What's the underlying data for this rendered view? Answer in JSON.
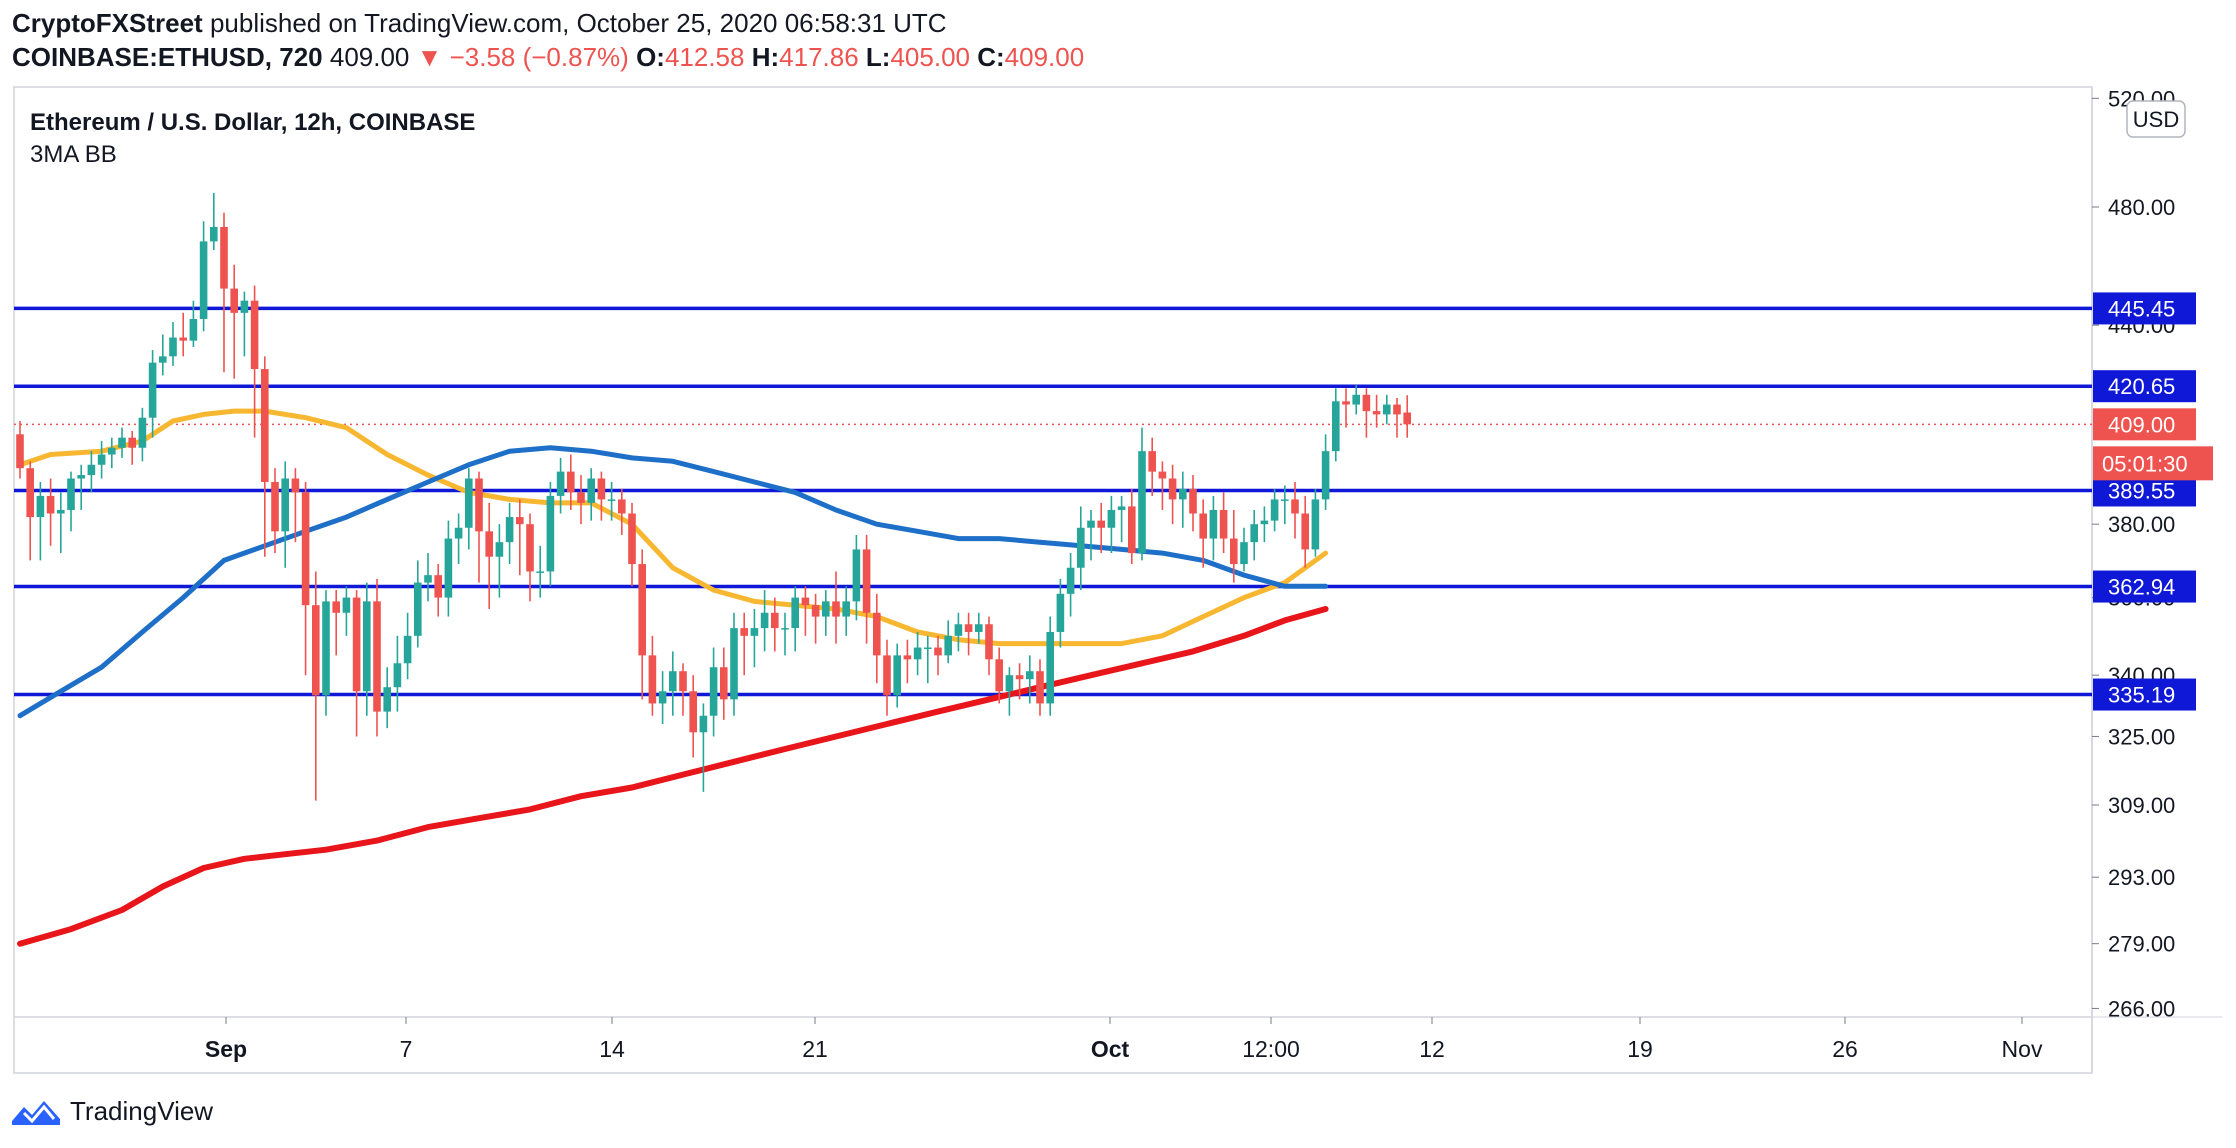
{
  "header": {
    "publisher": "CryptoFXStreet",
    "published_text": "published on TradingView.com, October 25, 2020 06:58:31 UTC",
    "symbol": "COINBASE:ETHUSD, 720",
    "last": "409.00",
    "change": "▼ −3.58 (−0.87%)",
    "o_label": "O:",
    "o_value": "412.58",
    "h_label": "H:",
    "h_value": "417.86",
    "l_label": "L:",
    "l_value": "405.00",
    "c_label": "C:",
    "c_value": "409.00"
  },
  "pane": {
    "title": "Ethereum / U.S. Dollar, 12h, COINBASE",
    "indicator": "3MA BB"
  },
  "currency_button": "USD",
  "countdown": "05:01:30",
  "footer": {
    "brand": "TradingView",
    "logo_icon": "tradingview-logo-icon"
  },
  "colors": {
    "up": "#26a69a",
    "down": "#ef5350",
    "level": "#0e18d6",
    "ma_fast": "#f7b731",
    "ma_mid": "#1e6fc8",
    "ma_slow": "#e8151b"
  },
  "chart_data": {
    "type": "candlestick",
    "interval": "12h",
    "y_axis": {
      "ticks": [
        "520.00",
        "480.00",
        "440.00",
        "380.00",
        "360.00",
        "340.00",
        "325.00",
        "309.00",
        "293.00",
        "279.00",
        "266.00"
      ],
      "scale": "log",
      "range": [
        263,
        525
      ]
    },
    "x_axis": {
      "ticks": [
        "Sep",
        "7",
        "14",
        "21",
        "Oct",
        "12:00",
        "12",
        "19",
        "26",
        "Nov"
      ]
    },
    "levels": [
      {
        "label": "445.45",
        "value": 445.45
      },
      {
        "label": "420.65",
        "value": 420.65
      },
      {
        "label": "389.55",
        "value": 389.55
      },
      {
        "label": "362.94",
        "value": 362.94
      },
      {
        "label": "335.19",
        "value": 335.19
      }
    ],
    "last_price": {
      "label": "409.00",
      "value": 409.0
    },
    "candles": [
      [
        406,
        396,
        410,
        393
      ],
      [
        396,
        382,
        398,
        370
      ],
      [
        382,
        388,
        392,
        370
      ],
      [
        388,
        383,
        393,
        374
      ],
      [
        383,
        384,
        389,
        372
      ],
      [
        384,
        393,
        395,
        378
      ],
      [
        393,
        394,
        397,
        384
      ],
      [
        394,
        397,
        401,
        389
      ],
      [
        397,
        400,
        404,
        393
      ],
      [
        400,
        402,
        405,
        396
      ],
      [
        402,
        405,
        408,
        399
      ],
      [
        405,
        402,
        407,
        397
      ],
      [
        402,
        411,
        414,
        398
      ],
      [
        411,
        428,
        432,
        405
      ],
      [
        428,
        430,
        437,
        424
      ],
      [
        430,
        436,
        441,
        427
      ],
      [
        436,
        435,
        444,
        430
      ],
      [
        435,
        442,
        448,
        433
      ],
      [
        442,
        468,
        475,
        438
      ],
      [
        468,
        473,
        485,
        465
      ],
      [
        473,
        452,
        478,
        425
      ],
      [
        452,
        444,
        460,
        423
      ],
      [
        444,
        448,
        451,
        430
      ],
      [
        448,
        426,
        453,
        405
      ],
      [
        426,
        392,
        430,
        371
      ],
      [
        392,
        378,
        396,
        372
      ],
      [
        378,
        393,
        398,
        368
      ],
      [
        393,
        389,
        396,
        375
      ],
      [
        389,
        358,
        392,
        340
      ],
      [
        358,
        335,
        367,
        310
      ],
      [
        335,
        359,
        362,
        330
      ],
      [
        359,
        356,
        362,
        345
      ],
      [
        356,
        360,
        363,
        350
      ],
      [
        360,
        336,
        362,
        325
      ],
      [
        336,
        359,
        364,
        330
      ],
      [
        359,
        331,
        365,
        325
      ],
      [
        331,
        337,
        342,
        327
      ],
      [
        337,
        343,
        350,
        331
      ],
      [
        343,
        350,
        356,
        339
      ],
      [
        350,
        364,
        370,
        347
      ],
      [
        364,
        366,
        372,
        359
      ],
      [
        366,
        360,
        369,
        355
      ],
      [
        360,
        376,
        381,
        355
      ],
      [
        376,
        379,
        383,
        369
      ],
      [
        379,
        393,
        396,
        373
      ],
      [
        393,
        378,
        395,
        364
      ],
      [
        378,
        371,
        386,
        357
      ],
      [
        371,
        375,
        380,
        360
      ],
      [
        375,
        382,
        386,
        369
      ],
      [
        382,
        380,
        387,
        366
      ],
      [
        380,
        367,
        383,
        359
      ],
      [
        367,
        367,
        374,
        360
      ],
      [
        367,
        388,
        392,
        363
      ],
      [
        388,
        395,
        399,
        383
      ],
      [
        395,
        389,
        400,
        384
      ],
      [
        389,
        386,
        394,
        380
      ],
      [
        386,
        393,
        396,
        381
      ],
      [
        393,
        387,
        395,
        381
      ],
      [
        387,
        387,
        392,
        381
      ],
      [
        387,
        383,
        390,
        377
      ],
      [
        383,
        369,
        386,
        363
      ],
      [
        369,
        345,
        373,
        334
      ],
      [
        345,
        333,
        350,
        330
      ],
      [
        333,
        336,
        341,
        328
      ],
      [
        336,
        341,
        346,
        330
      ],
      [
        341,
        336,
        343,
        330
      ],
      [
        336,
        326,
        340,
        320
      ],
      [
        326,
        330,
        333,
        312
      ],
      [
        330,
        342,
        347,
        325
      ],
      [
        342,
        334,
        347,
        329
      ],
      [
        334,
        352,
        356,
        330
      ],
      [
        352,
        350,
        356,
        340
      ],
      [
        350,
        352,
        357,
        342
      ],
      [
        352,
        356,
        362,
        346
      ],
      [
        356,
        352,
        360,
        346
      ],
      [
        352,
        352,
        356,
        345
      ],
      [
        352,
        360,
        363,
        346
      ],
      [
        360,
        358,
        363,
        350
      ],
      [
        358,
        355,
        361,
        348
      ],
      [
        355,
        359,
        362,
        350
      ],
      [
        359,
        355,
        367,
        348
      ],
      [
        355,
        359,
        363,
        350
      ],
      [
        359,
        373,
        377,
        354
      ],
      [
        373,
        356,
        377,
        348
      ],
      [
        356,
        345,
        361,
        338
      ],
      [
        345,
        335,
        349,
        330
      ],
      [
        335,
        345,
        348,
        332
      ],
      [
        345,
        344,
        349,
        338
      ],
      [
        344,
        347,
        351,
        340
      ],
      [
        347,
        347,
        350,
        338
      ],
      [
        347,
        345,
        350,
        340
      ],
      [
        345,
        350,
        354,
        343
      ],
      [
        350,
        353,
        356,
        346
      ],
      [
        353,
        351,
        356,
        345
      ],
      [
        351,
        353,
        356,
        348
      ],
      [
        353,
        344,
        355,
        340
      ],
      [
        344,
        336,
        347,
        333
      ],
      [
        336,
        340,
        342,
        330
      ],
      [
        340,
        339,
        343,
        334
      ],
      [
        339,
        341,
        345,
        333
      ],
      [
        341,
        333,
        344,
        330
      ],
      [
        333,
        351,
        355,
        330
      ],
      [
        351,
        361,
        365,
        347
      ],
      [
        361,
        368,
        372,
        355
      ],
      [
        368,
        379,
        385,
        362
      ],
      [
        379,
        381,
        384,
        370
      ],
      [
        381,
        379,
        386,
        372
      ],
      [
        379,
        384,
        388,
        372
      ],
      [
        384,
        385,
        388,
        375
      ],
      [
        385,
        372,
        390,
        369
      ],
      [
        372,
        401,
        408,
        370
      ],
      [
        401,
        395,
        405,
        388
      ],
      [
        395,
        393,
        398,
        384
      ],
      [
        393,
        387,
        397,
        380
      ],
      [
        387,
        390,
        395,
        379
      ],
      [
        390,
        383,
        394,
        378
      ],
      [
        383,
        376,
        387,
        368
      ],
      [
        376,
        384,
        388,
        370
      ],
      [
        384,
        376,
        389,
        372
      ],
      [
        376,
        369,
        384,
        364
      ],
      [
        369,
        375,
        379,
        367
      ],
      [
        375,
        380,
        384,
        370
      ],
      [
        380,
        381,
        385,
        375
      ],
      [
        381,
        387,
        390,
        378
      ],
      [
        387,
        387,
        391,
        380
      ],
      [
        387,
        383,
        392,
        376
      ],
      [
        383,
        373,
        388,
        368
      ],
      [
        373,
        387,
        390,
        371
      ],
      [
        387,
        401,
        406,
        384
      ],
      [
        401,
        416,
        420,
        398
      ],
      [
        416,
        415,
        420,
        408
      ],
      [
        415,
        418,
        421,
        412
      ],
      [
        418,
        413,
        420,
        405
      ],
      [
        413,
        412,
        418,
        408
      ],
      [
        412,
        415,
        418,
        409
      ],
      [
        415,
        412,
        417,
        405
      ],
      [
        412.58,
        409,
        417.86,
        405
      ]
    ],
    "series": [
      {
        "type": "line",
        "points": [
          [
            0,
            397
          ],
          [
            3,
            400
          ],
          [
            8,
            401
          ],
          [
            12,
            404
          ],
          [
            15,
            410
          ],
          [
            18,
            412
          ],
          [
            21,
            413
          ],
          [
            24,
            413
          ],
          [
            28,
            411
          ],
          [
            32,
            408
          ],
          [
            36,
            400
          ],
          [
            40,
            394
          ],
          [
            44,
            389
          ],
          [
            48,
            387
          ],
          [
            52,
            386
          ],
          [
            56,
            386
          ],
          [
            60,
            380
          ],
          [
            64,
            368
          ],
          [
            68,
            362
          ],
          [
            72,
            359
          ],
          [
            76,
            358
          ],
          [
            80,
            357
          ],
          [
            84,
            355
          ],
          [
            88,
            351
          ],
          [
            92,
            349
          ],
          [
            96,
            348
          ],
          [
            100,
            348
          ],
          [
            104,
            348
          ],
          [
            108,
            348
          ],
          [
            112,
            350
          ],
          [
            116,
            355
          ],
          [
            120,
            360
          ],
          [
            124,
            364
          ],
          [
            128,
            372
          ]
        ]
      },
      {
        "type": "line",
        "points": [
          [
            0,
            330
          ],
          [
            4,
            336
          ],
          [
            8,
            342
          ],
          [
            12,
            351
          ],
          [
            16,
            360
          ],
          [
            20,
            370
          ],
          [
            24,
            374
          ],
          [
            28,
            378
          ],
          [
            32,
            382
          ],
          [
            36,
            387
          ],
          [
            40,
            392
          ],
          [
            44,
            397
          ],
          [
            48,
            401
          ],
          [
            52,
            402
          ],
          [
            56,
            401
          ],
          [
            60,
            399
          ],
          [
            64,
            398
          ],
          [
            68,
            395
          ],
          [
            72,
            392
          ],
          [
            76,
            389
          ],
          [
            80,
            384
          ],
          [
            84,
            380
          ],
          [
            88,
            378
          ],
          [
            92,
            376
          ],
          [
            96,
            376
          ],
          [
            100,
            375
          ],
          [
            104,
            374
          ],
          [
            108,
            373
          ],
          [
            112,
            372
          ],
          [
            116,
            370
          ],
          [
            120,
            366
          ],
          [
            124,
            363
          ],
          [
            128,
            363
          ]
        ]
      },
      {
        "type": "line",
        "points": [
          [
            0,
            279
          ],
          [
            5,
            282
          ],
          [
            10,
            286
          ],
          [
            14,
            291
          ],
          [
            18,
            295
          ],
          [
            22,
            297
          ],
          [
            26,
            298
          ],
          [
            30,
            299
          ],
          [
            35,
            301
          ],
          [
            40,
            304
          ],
          [
            45,
            306
          ],
          [
            50,
            308
          ],
          [
            55,
            311
          ],
          [
            60,
            313
          ],
          [
            65,
            316
          ],
          [
            70,
            319
          ],
          [
            75,
            322
          ],
          [
            80,
            325
          ],
          [
            85,
            328
          ],
          [
            90,
            331
          ],
          [
            95,
            334
          ],
          [
            100,
            337
          ],
          [
            105,
            340
          ],
          [
            110,
            343
          ],
          [
            115,
            346
          ],
          [
            120,
            350
          ],
          [
            124,
            354
          ],
          [
            128,
            357
          ]
        ]
      }
    ]
  }
}
